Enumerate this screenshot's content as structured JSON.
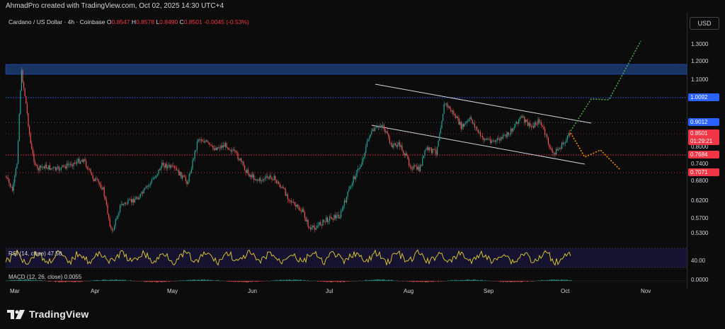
{
  "header": {
    "created_by": "AhmadPro created with TradingView.com, Oct 02, 2025 14:30 UTC+4"
  },
  "legend": {
    "symbol": "Cardano / US Dollar · 4h · Coinbase",
    "o_label": "O",
    "o_value": "0.8547",
    "h_label": "H",
    "h_value": "0.8578",
    "l_label": "L",
    "l_value": "0.8490",
    "c_label": "C",
    "c_value": "0.8501",
    "change": "-0.0045 (-0.53%)"
  },
  "price_axis": {
    "currency": "USD",
    "labels": [
      "1.3000",
      "1.2000",
      "1.1000",
      "0.8000",
      "0.7400",
      "0.6800",
      "0.6200",
      "0.5700",
      "0.5300"
    ],
    "tags": {
      "level_1": "1.0092",
      "level_2": "0.9012",
      "current_price": "0.8501",
      "countdown": "01:29:21",
      "level_3": "0.7684",
      "level_4": "0.7071"
    }
  },
  "rsi": {
    "legend": "RSI (14, close) 47.58",
    "axis_label": "40.00"
  },
  "macd": {
    "legend": "MACD (12, 26, close) 0.0055",
    "axis_label": "0.0000"
  },
  "time_axis": {
    "months": [
      "Mar",
      "Apr",
      "May",
      "Jun",
      "Jul",
      "Aug",
      "Sep",
      "Oct",
      "Nov"
    ]
  },
  "colors": {
    "background": "#0c0c0c",
    "up": "#26a69a",
    "down": "#ef5350",
    "blue_level": "#2962ff",
    "red_level": "#f23645",
    "projection_up": "#4caf50",
    "projection_down": "#ff9800",
    "rsi_line": "#e6d12a"
  },
  "footer": {
    "brand": "TradingView"
  }
}
